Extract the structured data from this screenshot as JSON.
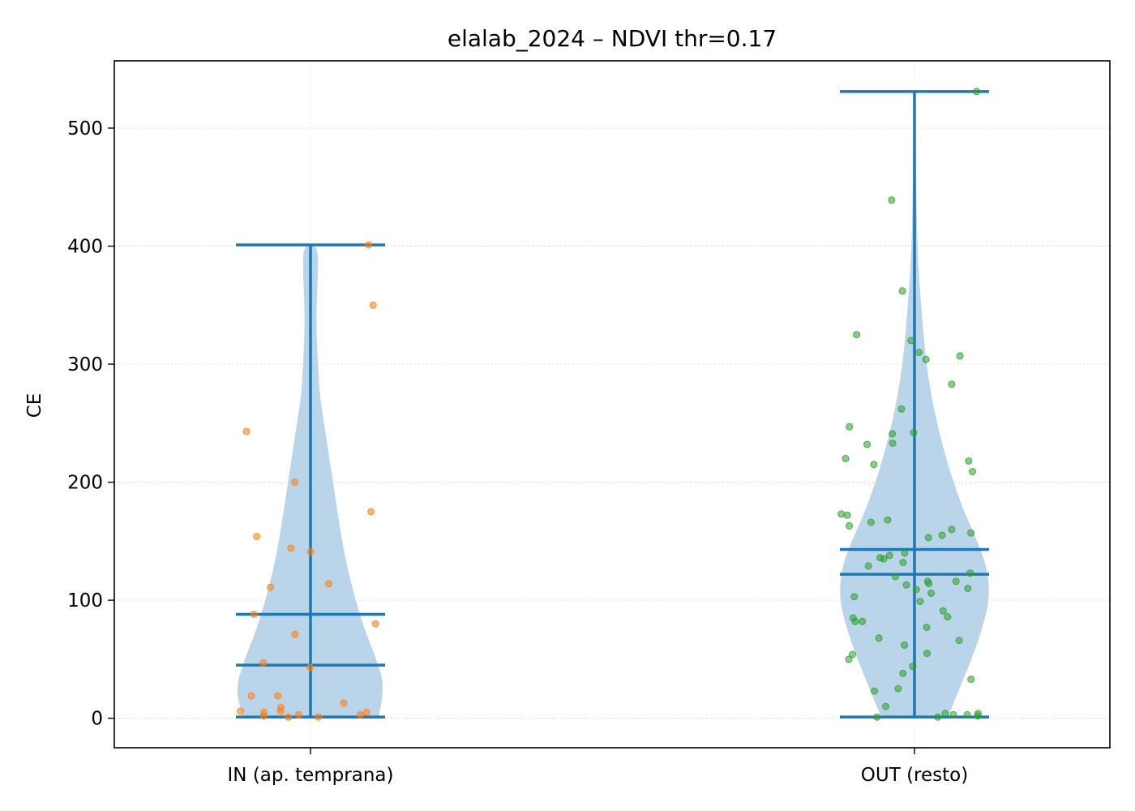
{
  "chart_data": {
    "type": "violin",
    "title": "elalab_2024 – NDVI thr=0.17",
    "xlabel": "",
    "ylabel": "CE",
    "ylim": [
      -25,
      557
    ],
    "y_ticks": [
      0,
      100,
      200,
      300,
      400,
      500
    ],
    "grid": true,
    "categories": [
      "IN (ap. temprana)",
      "OUT (resto)"
    ],
    "colors": {
      "violin": "#a9c9e4",
      "stats": "#1f77b4",
      "in_points": "#ff7f0e",
      "out_points": "#2ca02c"
    },
    "groups": [
      {
        "name": "IN (ap. temprana)",
        "min": 1,
        "max": 401,
        "mean": 88,
        "median": 45,
        "density": [
          [
            0,
            0.45
          ],
          [
            25,
            0.5
          ],
          [
            50,
            0.44
          ],
          [
            75,
            0.36
          ],
          [
            100,
            0.3
          ],
          [
            125,
            0.25
          ],
          [
            150,
            0.21
          ],
          [
            175,
            0.18
          ],
          [
            200,
            0.15
          ],
          [
            225,
            0.12
          ],
          [
            250,
            0.09
          ],
          [
            275,
            0.06
          ],
          [
            300,
            0.05
          ],
          [
            325,
            0.04
          ],
          [
            350,
            0.04
          ],
          [
            375,
            0.05
          ],
          [
            401,
            0.05
          ]
        ],
        "points": [
          401,
          350,
          243,
          200,
          175,
          154,
          144,
          141,
          114,
          111,
          88,
          80,
          71,
          47,
          43,
          19,
          19,
          13,
          9,
          6,
          6,
          5,
          5,
          3,
          3,
          2,
          1,
          1
        ]
      },
      {
        "name": "OUT (resto)",
        "min": 1,
        "max": 531,
        "mean": 143,
        "median": 122,
        "density": [
          [
            0,
            0.22
          ],
          [
            25,
            0.3
          ],
          [
            50,
            0.38
          ],
          [
            75,
            0.45
          ],
          [
            100,
            0.5
          ],
          [
            125,
            0.49
          ],
          [
            150,
            0.42
          ],
          [
            175,
            0.33
          ],
          [
            200,
            0.26
          ],
          [
            225,
            0.2
          ],
          [
            250,
            0.15
          ],
          [
            275,
            0.11
          ],
          [
            300,
            0.08
          ],
          [
            325,
            0.06
          ],
          [
            350,
            0.045
          ],
          [
            375,
            0.03
          ],
          [
            400,
            0.02
          ],
          [
            425,
            0.015
          ],
          [
            450,
            0.012
          ],
          [
            475,
            0.01
          ],
          [
            500,
            0.008
          ],
          [
            531,
            0.006
          ]
        ],
        "points": [
          531,
          439,
          362,
          325,
          320,
          310,
          307,
          304,
          283,
          262,
          247,
          242,
          241,
          233,
          232,
          220,
          218,
          215,
          209,
          173,
          172,
          168,
          166,
          163,
          160,
          157,
          155,
          153,
          140,
          138,
          136,
          135,
          132,
          129,
          123,
          120,
          116,
          116,
          114,
          113,
          110,
          109,
          106,
          103,
          99,
          91,
          86,
          85,
          82,
          82,
          77,
          68,
          66,
          62,
          55,
          54,
          50,
          44,
          38,
          33,
          25,
          23,
          10,
          4,
          4,
          3,
          3,
          2,
          1,
          1
        ]
      }
    ]
  }
}
